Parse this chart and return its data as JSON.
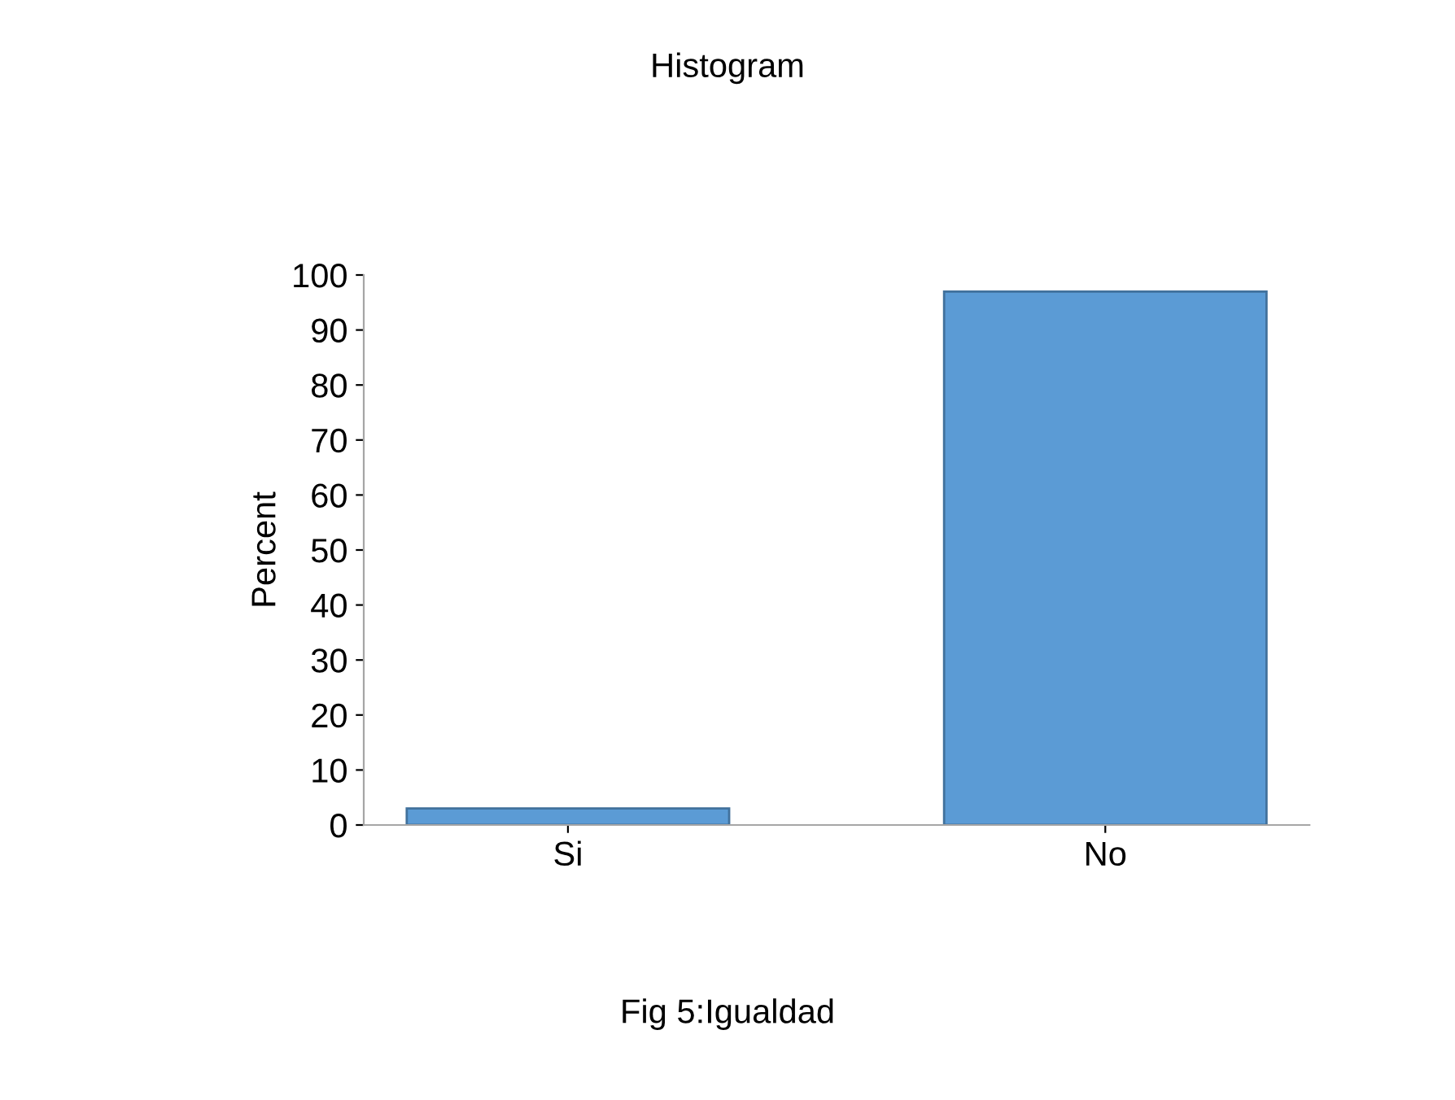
{
  "chart_data": {
    "type": "bar",
    "title": "Histogram",
    "ylabel": "Percent",
    "categories": [
      "Si",
      "No"
    ],
    "values": [
      3,
      97
    ],
    "color": "#5b9bd5",
    "ylim": [
      0,
      100
    ],
    "yticks": [
      0,
      10,
      20,
      30,
      40,
      50,
      60,
      70,
      80,
      90,
      100
    ],
    "annotations": [
      "Fig 5:Igualdad"
    ]
  }
}
